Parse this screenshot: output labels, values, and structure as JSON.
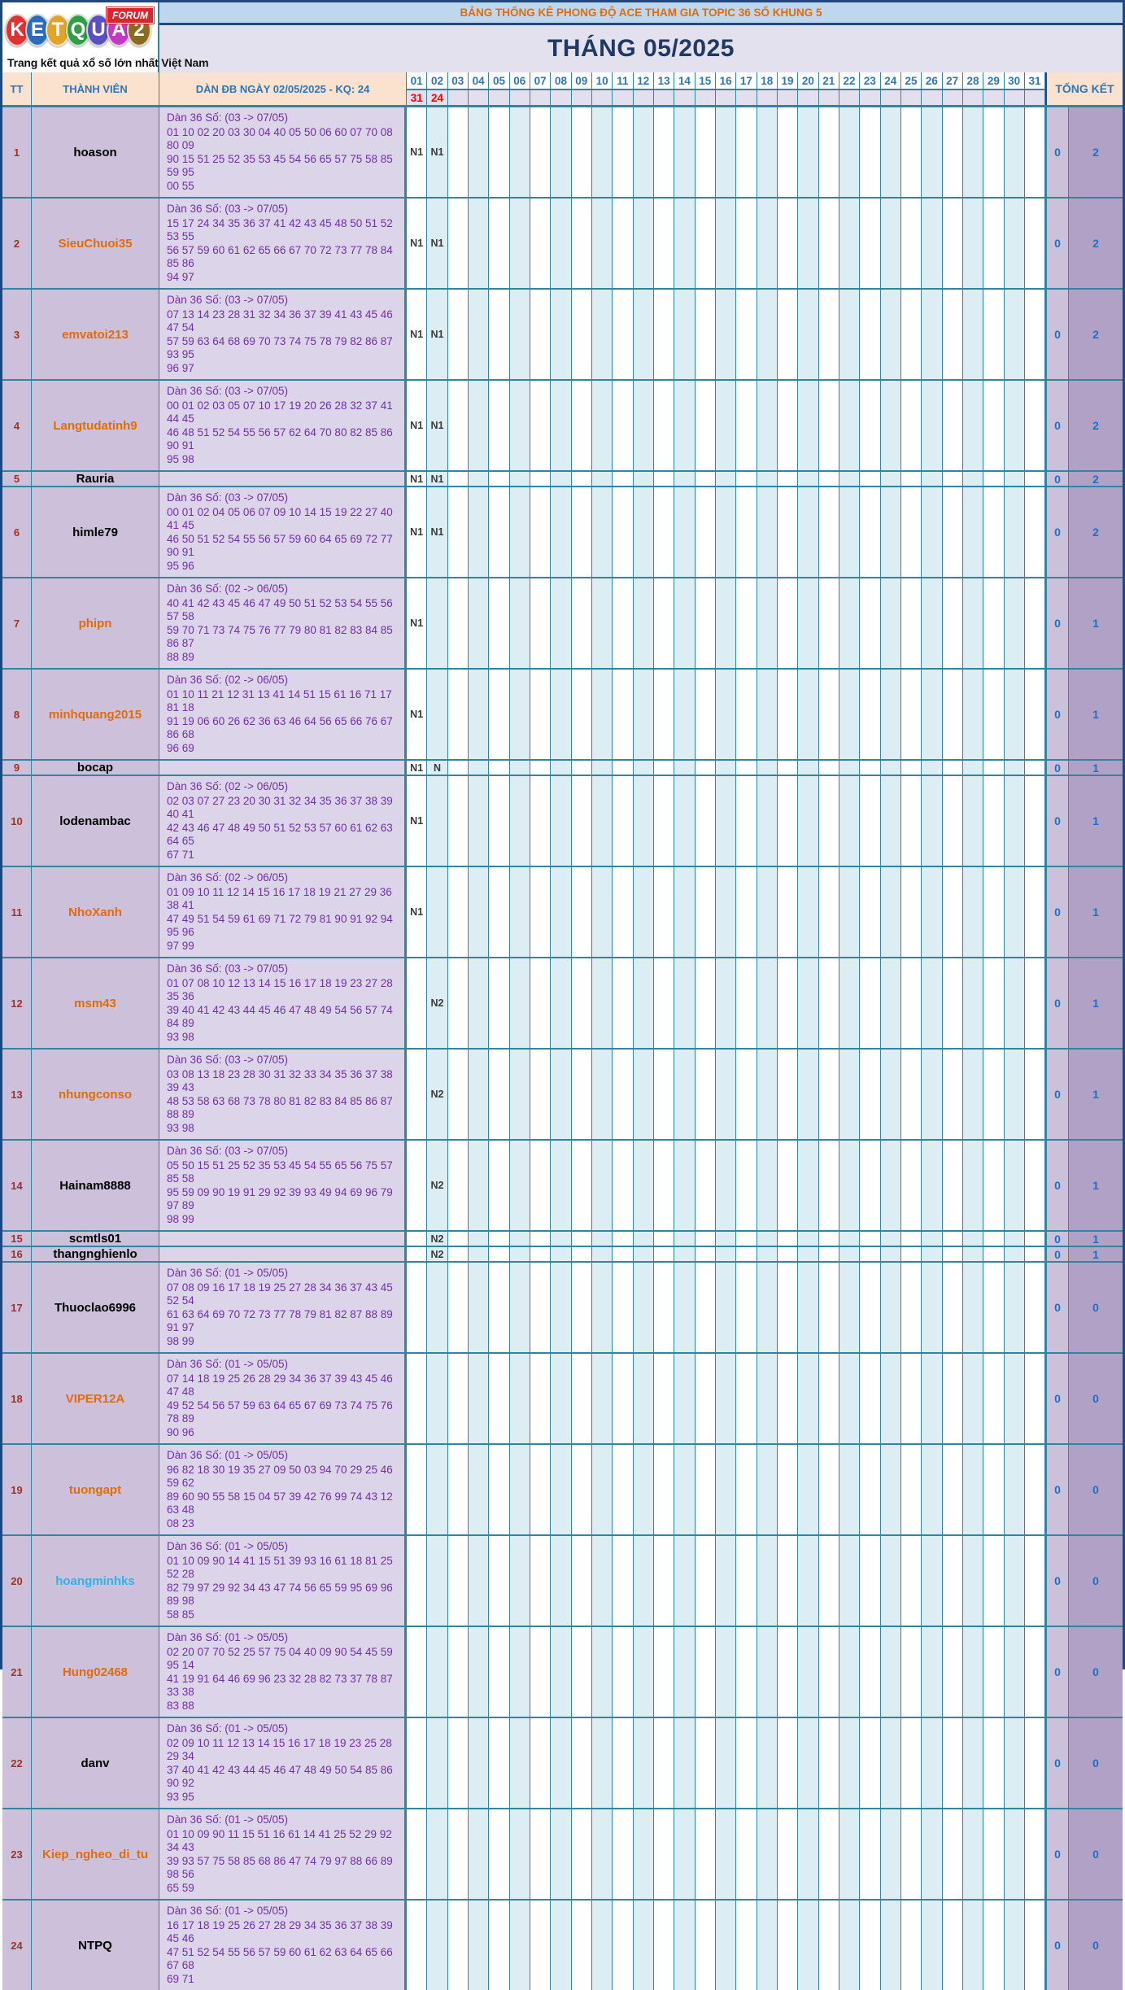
{
  "logo": {
    "letters": [
      {
        "ch": "K",
        "color": "#DD3333"
      },
      {
        "ch": "E",
        "color": "#2B6CB8"
      },
      {
        "ch": "T",
        "color": "#DFA32E"
      },
      {
        "ch": "Q",
        "color": "#2F9E44"
      },
      {
        "ch": "U",
        "color": "#5B4FBF"
      },
      {
        "ch": "A",
        "color": "#C03BBF"
      },
      {
        "ch": "2",
        "color": "#8A6A1F"
      }
    ],
    "badge": "FORUM",
    "tagline": "Trang kết quả xổ số lớn nhất Việt Nam"
  },
  "banner_title": "BẢNG THỐNG KÊ PHONG ĐỘ ACE THAM GIA TOPIC 36 SỐ KHUNG 5",
  "month_title": "THÁNG 05/2025",
  "headers": {
    "tt": "TT",
    "member": "THÀNH VIÊN",
    "dan": "DÀN ĐB NGÀY 02/05/2025 - KQ: 24",
    "tongket": "TỔNG KẾT"
  },
  "days": [
    "01",
    "02",
    "03",
    "04",
    "05",
    "06",
    "07",
    "08",
    "09",
    "10",
    "11",
    "12",
    "13",
    "14",
    "15",
    "16",
    "17",
    "18",
    "19",
    "20",
    "21",
    "22",
    "23",
    "24",
    "25",
    "26",
    "27",
    "28",
    "29",
    "30",
    "31"
  ],
  "result_row": {
    "01": "31",
    "02": "24"
  },
  "colors": {
    "banner_text": "#E26B0A",
    "header_text": "#2E75B6",
    "result_red": "#FF0000",
    "dan_purple": "#7030A0",
    "total_blue": "#1F6FC4",
    "member_black": "#000000",
    "member_orange": "#E26B0A",
    "member_lightblue": "#2FB3E8",
    "grid_teal": "#31859C"
  },
  "rows": [
    {
      "tt": "1",
      "member": "hoason",
      "member_color": "#000000",
      "dan_title": "Dàn 36 Số: (03 -> 07/05)",
      "dan_lines": [
        "01 10 02 20 03 30 04 40 05 50 06 60 07 70 08 80 09",
        "90 15 51 25 52 35 53 45 54 56 65 57 75 58 85 59 95",
        "00 55"
      ],
      "marks": {
        "01": "N1",
        "02": "N1"
      },
      "total": [
        "0",
        "2"
      ]
    },
    {
      "tt": "2",
      "member": "SieuChuoi35",
      "member_color": "#E26B0A",
      "dan_title": "Dàn 36 Số: (03 -> 07/05)",
      "dan_lines": [
        "15 17 24 34 35 36 37 41 42 43 45 48 50 51 52 53 55",
        "56 57 59 60 61 62 65 66 67 70 72 73 77 78 84 85 86",
        "94 97"
      ],
      "marks": {
        "01": "N1",
        "02": "N1"
      },
      "total": [
        "0",
        "2"
      ]
    },
    {
      "tt": "3",
      "member": "emvatoi213",
      "member_color": "#E26B0A",
      "dan_title": "Dàn 36 Số: (03 -> 07/05)",
      "dan_lines": [
        "07 13 14 23 28 31 32 34 36 37 39 41 43 45 46 47 54",
        "57 59 63 64 68 69 70 73 74 75 78 79 82 86 87 93 95",
        "96 97"
      ],
      "marks": {
        "01": "N1",
        "02": "N1"
      },
      "total": [
        "0",
        "2"
      ]
    },
    {
      "tt": "4",
      "member": "Langtudatinh9",
      "member_color": "#E26B0A",
      "dan_title": "Dàn 36 Số: (03 -> 07/05)",
      "dan_lines": [
        "00 01 02 03 05 07 10 17 19 20 26 28 32 37 41 44 45",
        "46 48 51 52 54 55 56 57 62 64 70 80 82 85 86 90 91",
        "95 98"
      ],
      "marks": {
        "01": "N1",
        "02": "N1"
      },
      "total": [
        "0",
        "2"
      ]
    },
    {
      "tt": "5",
      "member": "Rauria",
      "member_color": "#000000",
      "dan_title": "",
      "dan_lines": [],
      "marks": {
        "01": "N1",
        "02": "N1"
      },
      "total": [
        "0",
        "2"
      ]
    },
    {
      "tt": "6",
      "member": "himle79",
      "member_color": "#000000",
      "dan_title": "Dàn 36 Số: (03 -> 07/05)",
      "dan_lines": [
        "00 01 02 04 05 06 07 09 10 14 15 19 22 27 40 41 45",
        "46 50 51 52 54 55 56 57 59 60 64 65 69 72 77 90 91",
        "95 96"
      ],
      "marks": {
        "01": "N1",
        "02": "N1"
      },
      "total": [
        "0",
        "2"
      ]
    },
    {
      "tt": "7",
      "member": "phipn",
      "member_color": "#E26B0A",
      "dan_title": "Dàn 36 Số: (02 -> 06/05)",
      "dan_lines": [
        "40 41 42 43 45 46 47 49 50 51 52 53 54 55 56 57 58",
        "59 70 71 73 74 75 76 77 79 80 81 82 83 84 85 86 87",
        "88 89"
      ],
      "marks": {
        "01": "N1"
      },
      "total": [
        "0",
        "1"
      ]
    },
    {
      "tt": "8",
      "member": "minhquang2015",
      "member_color": "#E26B0A",
      "dan_title": "Dàn 36 Số: (02 -> 06/05)",
      "dan_lines": [
        "01 10 11 21 12 31 13 41 14 51 15 61 16 71 17 81 18",
        "91 19 06 60 26 62 36 63 46 64 56 65 66 76 67 86 68",
        "96 69"
      ],
      "marks": {
        "01": "N1"
      },
      "total": [
        "0",
        "1"
      ]
    },
    {
      "tt": "9",
      "member": "bocap",
      "member_color": "#000000",
      "dan_title": "",
      "dan_lines": [],
      "marks": {
        "01": "N1",
        "02": "N"
      },
      "total": [
        "0",
        "1"
      ]
    },
    {
      "tt": "10",
      "member": "lodenambac",
      "member_color": "#000000",
      "dan_title": "Dàn 36 Số: (02 -> 06/05)",
      "dan_lines": [
        "02 03 07 27 23 20 30 31 32 34 35 36 37 38 39 40 41",
        "42 43 46 47 48 49 50 51 52 53 57 60 61 62 63 64 65",
        "67 71"
      ],
      "marks": {
        "01": "N1"
      },
      "total": [
        "0",
        "1"
      ]
    },
    {
      "tt": "11",
      "member": "NhoXanh",
      "member_color": "#E26B0A",
      "dan_title": "Dàn 36 Số: (02 -> 06/05)",
      "dan_lines": [
        "01 09 10 11 12 14 15 16 17 18 19 21 27 29 36 38 41",
        "47 49 51 54 59 61 69 71 72 79 81 90 91 92 94 95 96",
        "97 99"
      ],
      "marks": {
        "01": "N1"
      },
      "total": [
        "0",
        "1"
      ]
    },
    {
      "tt": "12",
      "member": "msm43",
      "member_color": "#E26B0A",
      "dan_title": "Dàn 36 Số: (03 -> 07/05)",
      "dan_lines": [
        "01 07 08 10 12 13 14 15 16 17 18 19 23 27 28 35 36",
        "39 40 41 42 43 44 45 46 47 48 49 54 56 57 74 84 89",
        "93 98"
      ],
      "marks": {
        "02": "N2"
      },
      "total": [
        "0",
        "1"
      ]
    },
    {
      "tt": "13",
      "member": "nhungconso",
      "member_color": "#E26B0A",
      "dan_title": "Dàn 36 Số: (03 -> 07/05)",
      "dan_lines": [
        "03 08 13 18 23 28 30 31 32 33 34 35 36 37 38 39 43",
        "48 53 58 63 68 73 78 80 81 82 83 84 85 86 87 88 89",
        "93 98"
      ],
      "marks": {
        "02": "N2"
      },
      "total": [
        "0",
        "1"
      ]
    },
    {
      "tt": "14",
      "member": "Hainam8888",
      "member_color": "#000000",
      "dan_title": "Dàn 36 Số: (03 -> 07/05)",
      "dan_lines": [
        "05 50 15 51 25 52 35 53 45 54 55 65 56 75 57 85 58",
        "95 59 09 90 19 91 29 92 39 93 49 94 69 96 79 97 89",
        "98 99"
      ],
      "marks": {
        "02": "N2"
      },
      "total": [
        "0",
        "1"
      ]
    },
    {
      "tt": "15",
      "member": "scmtls01",
      "member_color": "#000000",
      "dan_title": "",
      "dan_lines": [],
      "marks": {
        "02": "N2"
      },
      "total": [
        "0",
        "1"
      ]
    },
    {
      "tt": "16",
      "member": "thangnghienlo",
      "member_color": "#000000",
      "dan_title": "",
      "dan_lines": [],
      "marks": {
        "02": "N2"
      },
      "total": [
        "0",
        "1"
      ]
    },
    {
      "tt": "17",
      "member": "Thuoclao6996",
      "member_color": "#000000",
      "dan_title": "Dàn 36 Số: (01 -> 05/05)",
      "dan_lines": [
        "07 08 09 16 17 18 19 25 27 28 34 36 37 43 45 52 54",
        "61 63 64 69 70 72 73 77 78 79 81 82 87 88 89 91 97",
        "98 99"
      ],
      "marks": {},
      "total": [
        "0",
        "0"
      ]
    },
    {
      "tt": "18",
      "member": "VIPER12A",
      "member_color": "#E26B0A",
      "dan_title": "Dàn 36 Số: (01 -> 05/05)",
      "dan_lines": [
        "07 14 18 19 25 26 28 29 34 36 37 39 43 45 46 47 48",
        "49 52 54 56 57 59 63 64 65 67 69 73 74 75 76 78 89",
        "90 96"
      ],
      "marks": {},
      "total": [
        "0",
        "0"
      ]
    },
    {
      "tt": "19",
      "member": "tuongapt",
      "member_color": "#E26B0A",
      "dan_title": "Dàn 36 Số: (01 -> 05/05)",
      "dan_lines": [
        "96 82 18 30 19 35 27 09 50 03 94 70 29 25 46 59 62",
        "89 60 90 55 58 15 04 57 39 42 76 99 74 43 12 63 48",
        "08 23"
      ],
      "marks": {},
      "total": [
        "0",
        "0"
      ]
    },
    {
      "tt": "20",
      "member": "hoangminhks",
      "member_color": "#2FB3E8",
      "dan_title": "Dàn 36 Số: (01 -> 05/05)",
      "dan_lines": [
        "01 10 09 90 14 41 15 51 39 93 16 61 18 81 25 52 28",
        "82 79 97 29 92 34 43 47 74 56 65 59 95 69 96 89 98",
        "58 85"
      ],
      "marks": {},
      "total": [
        "0",
        "0"
      ]
    },
    {
      "tt": "21",
      "member": "Hung02468",
      "member_color": "#E26B0A",
      "dan_title": "Dàn 36 Số: (01 -> 05/05)",
      "dan_lines": [
        "02 20 07 70 52 25 57 75 04 40 09 90 54 45 59 95 14",
        "41 19 91 64 46 69 96 23 32 28 82 73 37 78 87 33 38",
        "83 88"
      ],
      "marks": {},
      "total": [
        "0",
        "0"
      ]
    },
    {
      "tt": "22",
      "member": "danv",
      "member_color": "#000000",
      "dan_title": "Dàn 36 Số: (01 -> 05/05)",
      "dan_lines": [
        "02 09 10 11 12 13 14 15 16 17 18 19 23 25 28 29 34",
        "37 40 41 42 43 44 45 46 47 48 49 50 54 85 86 90 92",
        "93 95"
      ],
      "marks": {},
      "total": [
        "0",
        "0"
      ]
    },
    {
      "tt": "23",
      "member": "Kiep_ngheo_di_tu",
      "member_color": "#E26B0A",
      "dan_title": "Dàn 36 Số: (01 -> 05/05)",
      "dan_lines": [
        "01 10 09 90 11 15 51 16 61 14 41 25 52 29 92 34 43",
        "39 93 57 75 58 85 68 86 47 74 79 97 88 66 89 98 56",
        "65 59"
      ],
      "marks": {},
      "total": [
        "0",
        "0"
      ]
    },
    {
      "tt": "24",
      "member": "NTPQ",
      "member_color": "#000000",
      "dan_title": "Dàn 36 Số: (01 -> 05/05)",
      "dan_lines": [
        "16 17 18 19 25 26 27 28 29 34 35 36 37 38 39 45 46",
        "47 51 52 54 55 56 57 59 60 61 62 63 64 65 66 67 68",
        "69 71"
      ],
      "marks": {},
      "total": [
        "0",
        "0"
      ]
    }
  ]
}
